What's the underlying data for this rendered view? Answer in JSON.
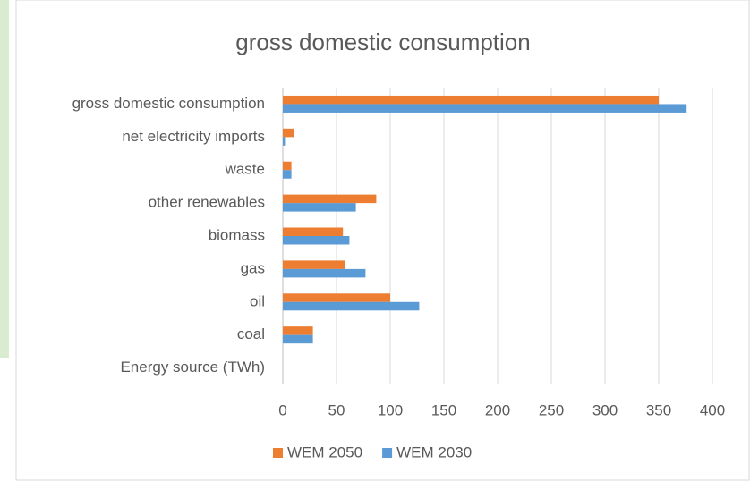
{
  "chart_data": {
    "type": "hbar",
    "title": "gross domestic consumption",
    "categories": [
      "gross domestic consumption",
      "net electricity imports",
      "waste",
      "other renewables",
      "biomass",
      "gas",
      "oil",
      "coal",
      "Energy source (TWh)"
    ],
    "series": [
      {
        "name": "WEM 2050",
        "color": "#ed7d31",
        "values": [
          350,
          10,
          8,
          87,
          56,
          58,
          100,
          28,
          null
        ]
      },
      {
        "name": "WEM 2030",
        "color": "#5b9bd5",
        "values": [
          376,
          2,
          8,
          68,
          62,
          77,
          127,
          28,
          null
        ]
      }
    ],
    "xlim": [
      0,
      400
    ],
    "xticks": [
      0,
      50,
      100,
      150,
      200,
      250,
      300,
      350,
      400
    ],
    "grid": true,
    "legend": "bottom"
  }
}
